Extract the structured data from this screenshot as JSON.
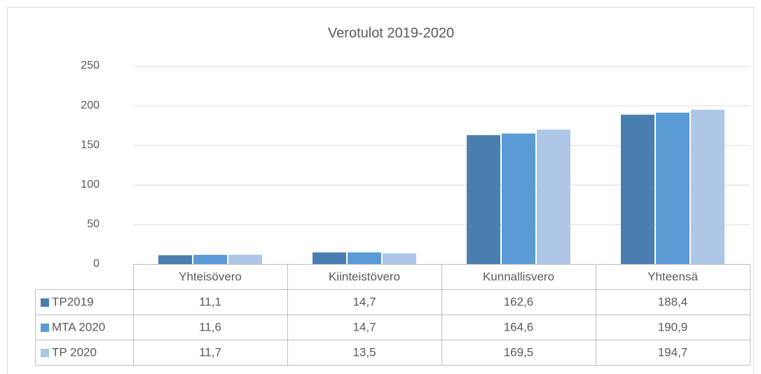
{
  "chart_data": {
    "type": "bar",
    "title": "Verotulot 2019-2020",
    "categories": [
      "Yhteisövero",
      "Kiinteistövero",
      "Kunnallisvero",
      "Yhteensä"
    ],
    "series": [
      {
        "name": "TP2019",
        "color": "#4a7eb0",
        "values": [
          11.1,
          14.7,
          162.6,
          188.4
        ],
        "value_labels": [
          "11,1",
          "14,7",
          "162,6",
          "188,4"
        ]
      },
      {
        "name": "MTA 2020",
        "color": "#5b9bd5",
        "values": [
          11.6,
          14.7,
          164.6,
          190.9
        ],
        "value_labels": [
          "11,6",
          "14,7",
          "164,6",
          "190,9"
        ]
      },
      {
        "name": "TP 2020",
        "color": "#adc6e6",
        "values": [
          11.7,
          13.5,
          169.5,
          194.7
        ],
        "value_labels": [
          "11,7",
          "13,5",
          "169,5",
          "194,7"
        ]
      }
    ],
    "ylim": [
      0,
      250
    ],
    "yticks": [
      0,
      50,
      100,
      150,
      200,
      250
    ],
    "grid": true
  }
}
